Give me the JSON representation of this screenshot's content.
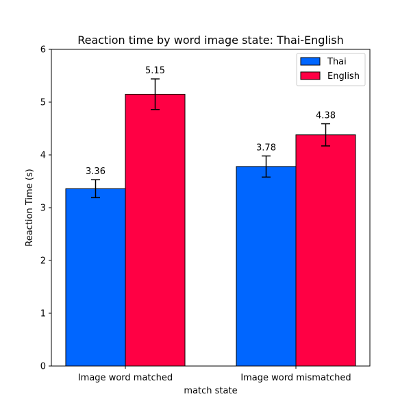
{
  "chart_data": {
    "type": "bar",
    "title": "Reaction time by word image state: Thai-English",
    "xlabel": "match state",
    "ylabel": "Reaction Time (s)",
    "categories": [
      "Image word matched",
      "Image word mismatched"
    ],
    "series": [
      {
        "name": "Thai",
        "values": [
          3.36,
          3.78
        ],
        "errors": [
          0.17,
          0.2
        ],
        "color": "#0066ff"
      },
      {
        "name": "English",
        "values": [
          5.15,
          4.38
        ],
        "errors": [
          0.29,
          0.21
        ],
        "color": "#ff0044"
      }
    ],
    "value_labels": [
      "3.36",
      "3.78",
      "5.15",
      "4.38"
    ],
    "ylim": [
      0,
      6
    ],
    "yticks": [
      "0",
      "1",
      "2",
      "3",
      "4",
      "5",
      "6"
    ],
    "grid": false,
    "legend_position": "top-right",
    "edge_color": "#000000"
  }
}
